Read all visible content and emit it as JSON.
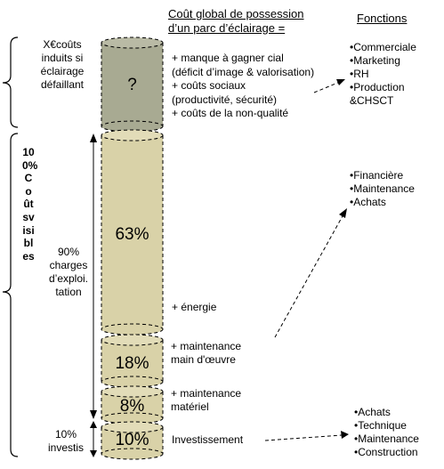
{
  "title_line1": "Coût global de possession",
  "title_line2": "d’un parc d’éclairage =",
  "functions_title": "Fonctions",
  "left": {
    "top_label": "X€coûts\ninduits si\néclairage\ndéfaillant",
    "vertical_label": "100%Coûtsvisibles",
    "charges_label": "90%\ncharges\nd’exploi.\ntation",
    "investis_label": "10%\ninvestis"
  },
  "cylinder": {
    "segments": [
      {
        "label": "?",
        "share": null,
        "color": "#a8aa92"
      },
      {
        "label": "63%",
        "share": 63,
        "color": "#d9d2a8"
      },
      {
        "label": "18%",
        "share": 18,
        "color": "#d9d2a8"
      },
      {
        "label": "8%",
        "share": 8,
        "color": "#d9d2a8"
      },
      {
        "label": "10%",
        "share": 10,
        "color": "#d9d2a8"
      }
    ]
  },
  "middle": {
    "hidden_costs": "+ manque à gagner cial\n(déficit d’image & valorisation)\n+ coûts sociaux\n(productivité, sécurité)\n+ coûts de la non-qualité",
    "energy": "+ énergie",
    "labour": "+ maintenance\nmain d'œuvre",
    "material": "+ maintenance\nmatériel",
    "investment": "Investissement"
  },
  "functions": {
    "group1": [
      "•Commerciale",
      "•Marketing",
      "•RH",
      "•Production\n&CHSCT"
    ],
    "group2": [
      "•Financière",
      "•Maintenance",
      "•Achats"
    ],
    "group3": [
      "•Achats",
      "•Technique",
      "•Maintenance",
      "•Construction"
    ]
  }
}
